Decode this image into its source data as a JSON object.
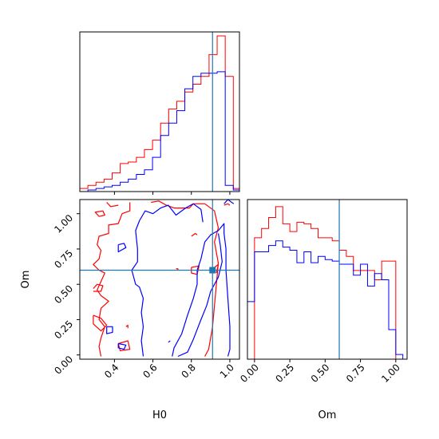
{
  "colors": {
    "series_a": "#ff0000",
    "series_b": "#0000ff",
    "truth": "#1f77b4",
    "axes": "#000000"
  },
  "chart_data": [
    {
      "type": "histogram",
      "panel": "H0 marginal (top-left)",
      "xlim": [
        0.22,
        1.05
      ],
      "tick_labels_shown": false,
      "truth": 0.91,
      "bin_edges": [
        0.22,
        0.262,
        0.304,
        0.346,
        0.388,
        0.43,
        0.472,
        0.514,
        0.556,
        0.598,
        0.64,
        0.682,
        0.724,
        0.766,
        0.808,
        0.85,
        0.892,
        0.934,
        0.976,
        1.018,
        1.05
      ],
      "series": [
        {
          "color": "red",
          "counts": [
            0.02,
            0.04,
            0.06,
            0.08,
            0.12,
            0.18,
            0.19,
            0.22,
            0.27,
            0.33,
            0.44,
            0.53,
            0.58,
            0.64,
            0.69,
            0.74,
            0.88,
            1.0,
            0.74,
            0.02
          ]
        },
        {
          "color": "blue",
          "counts": [
            0.0,
            0.01,
            0.02,
            0.03,
            0.04,
            0.06,
            0.08,
            0.11,
            0.14,
            0.22,
            0.36,
            0.44,
            0.52,
            0.66,
            0.74,
            0.76,
            0.76,
            0.77,
            0.04,
            0.01
          ]
        }
      ]
    },
    {
      "type": "contour",
      "panel": "H0 vs Om joint (bottom-left)",
      "xlabel": "H0",
      "ylabel": "Om",
      "xlim": [
        0.22,
        1.05
      ],
      "ylim": [
        -0.03,
        1.1
      ],
      "x_ticks": [
        0.4,
        0.6,
        0.8,
        1.0
      ],
      "x_tick_labels": [
        "0.4",
        "0.6",
        "0.8",
        "1.0"
      ],
      "y_ticks": [
        0.0,
        0.25,
        0.5,
        0.75,
        1.0
      ],
      "y_tick_labels": [
        "0.00",
        "0.25",
        "0.50",
        "0.75",
        "1.00"
      ],
      "truth": [
        0.91,
        0.6
      ],
      "series": [
        {
          "color": "red",
          "contours": [
            [
              [
                0.48,
                1.08
              ],
              [
                0.48,
                1.02
              ],
              [
                0.44,
                1.0
              ],
              [
                0.42,
                0.93
              ],
              [
                0.37,
                0.92
              ],
              [
                0.37,
                0.86
              ],
              [
                0.32,
                0.84
              ],
              [
                0.31,
                0.78
              ],
              [
                0.33,
                0.74
              ],
              [
                0.32,
                0.68
              ],
              [
                0.29,
                0.64
              ],
              [
                0.32,
                0.6
              ],
              [
                0.35,
                0.58
              ],
              [
                0.33,
                0.52
              ],
              [
                0.31,
                0.46
              ],
              [
                0.33,
                0.42
              ],
              [
                0.37,
                0.38
              ],
              [
                0.33,
                0.33
              ],
              [
                0.32,
                0.25
              ],
              [
                0.35,
                0.2
              ],
              [
                0.33,
                0.12
              ],
              [
                0.32,
                0.06
              ],
              [
                0.33,
                -0.01
              ]
            ],
            [
              [
                0.59,
                1.08
              ],
              [
                0.63,
                1.09
              ],
              [
                0.67,
                1.06
              ],
              [
                0.71,
                1.04
              ],
              [
                0.79,
                1.04
              ],
              [
                0.81,
                1.07
              ],
              [
                0.87,
                1.07
              ],
              [
                0.92,
                1.02
              ],
              [
                0.94,
                0.9
              ],
              [
                0.92,
                0.8
              ],
              [
                0.94,
                0.65
              ],
              [
                0.93,
                0.5
              ],
              [
                0.92,
                0.35
              ],
              [
                0.91,
                0.2
              ],
              [
                0.89,
                0.04
              ],
              [
                0.87,
                -0.01
              ]
            ],
            [
              [
                0.36,
                1.08
              ],
              [
                0.38,
                1.05
              ],
              [
                0.42,
                1.06
              ]
            ],
            [
              [
                0.32,
                0.98
              ],
              [
                0.35,
                0.99
              ],
              [
                0.34,
                1.02
              ],
              [
                0.3,
                1.01
              ],
              [
                0.32,
                0.98
              ]
            ],
            [
              [
                0.29,
                0.45
              ],
              [
                0.33,
                0.45
              ],
              [
                0.34,
                0.49
              ],
              [
                0.31,
                0.5
              ],
              [
                0.29,
                0.47
              ]
            ],
            [
              [
                0.29,
                0.28
              ],
              [
                0.33,
                0.26
              ],
              [
                0.36,
                0.21
              ],
              [
                0.33,
                0.17
              ],
              [
                0.29,
                0.22
              ],
              [
                0.29,
                0.28
              ]
            ],
            [
              [
                0.42,
                0.08
              ],
              [
                0.47,
                0.1
              ],
              [
                0.48,
                0.04
              ],
              [
                0.43,
                0.03
              ],
              [
                0.42,
                0.08
              ]
            ],
            [
              [
                0.46,
                0.2
              ],
              [
                0.47,
                0.21
              ],
              [
                0.47,
                0.19
              ]
            ],
            [
              [
                0.72,
                0.61
              ],
              [
                0.73,
                0.61
              ],
              [
                0.73,
                0.6
              ]
            ],
            [
              [
                0.8,
                0.84
              ],
              [
                0.82,
                0.86
              ],
              [
                0.83,
                0.85
              ]
            ],
            [
              [
                0.97,
                1.06
              ],
              [
                0.99,
                1.07
              ],
              [
                1.0,
                1.06
              ]
            ],
            [
              [
                0.8,
                0.62
              ],
              [
                0.84,
                0.63
              ],
              [
                0.83,
                0.57
              ],
              [
                0.8,
                0.58
              ],
              [
                0.8,
                0.62
              ]
            ],
            [
              [
                0.92,
                0.62
              ],
              [
                0.94,
                0.64
              ],
              [
                0.93,
                0.58
              ]
            ]
          ]
        },
        {
          "color": "blue",
          "contours": [
            [
              [
                0.55,
                -0.01
              ],
              [
                0.54,
                0.1
              ],
              [
                0.55,
                0.2
              ],
              [
                0.54,
                0.3
              ],
              [
                0.55,
                0.4
              ],
              [
                0.53,
                0.48
              ],
              [
                0.51,
                0.5
              ],
              [
                0.49,
                0.6
              ],
              [
                0.52,
                0.66
              ],
              [
                0.52,
                0.75
              ],
              [
                0.51,
                0.88
              ],
              [
                0.53,
                0.95
              ],
              [
                0.56,
                1.02
              ],
              [
                0.6,
                1.0
              ],
              [
                0.64,
                1.04
              ],
              [
                0.68,
                1.06
              ],
              [
                0.72,
                0.99
              ],
              [
                0.77,
                1.04
              ],
              [
                0.81,
                1.07
              ],
              [
                0.85,
                1.03
              ],
              [
                0.86,
                0.94
              ]
            ],
            [
              [
                0.7,
                -0.01
              ],
              [
                0.71,
                0.05
              ],
              [
                0.75,
                0.15
              ],
              [
                0.78,
                0.28
              ],
              [
                0.81,
                0.4
              ],
              [
                0.83,
                0.5
              ],
              [
                0.83,
                0.6
              ],
              [
                0.85,
                0.68
              ],
              [
                0.87,
                0.8
              ],
              [
                0.9,
                0.85
              ],
              [
                0.94,
                0.88
              ],
              [
                0.97,
                0.93
              ],
              [
                0.97,
                0.86
              ],
              [
                0.98,
                0.75
              ],
              [
                0.98,
                0.6
              ],
              [
                0.99,
                0.4
              ],
              [
                1.0,
                0.2
              ],
              [
                1.0,
                0.04
              ],
              [
                0.99,
                -0.01
              ]
            ],
            [
              [
                0.73,
                -0.01
              ],
              [
                0.78,
                0.02
              ],
              [
                0.81,
                0.11
              ],
              [
                0.85,
                0.25
              ],
              [
                0.88,
                0.35
              ],
              [
                0.9,
                0.45
              ],
              [
                0.94,
                0.55
              ],
              [
                0.96,
                0.66
              ],
              [
                0.95,
                0.78
              ],
              [
                0.94,
                0.86
              ]
            ],
            [
              [
                0.42,
                0.78
              ],
              [
                0.45,
                0.79
              ],
              [
                0.46,
                0.76
              ],
              [
                0.42,
                0.73
              ],
              [
                0.42,
                0.78
              ]
            ],
            [
              [
                0.36,
                0.2
              ],
              [
                0.39,
                0.2
              ],
              [
                0.39,
                0.16
              ],
              [
                0.36,
                0.15
              ],
              [
                0.36,
                0.2
              ]
            ],
            [
              [
                0.42,
                0.08
              ],
              [
                0.46,
                0.07
              ],
              [
                0.45,
                0.04
              ],
              [
                0.42,
                0.05
              ],
              [
                0.42,
                0.08
              ]
            ],
            [
              [
                0.68,
                0.09
              ],
              [
                0.69,
                0.1
              ]
            ],
            [
              [
                0.97,
                1.07
              ],
              [
                0.99,
                1.1
              ],
              [
                1.02,
                1.07
              ]
            ]
          ]
        }
      ]
    },
    {
      "type": "histogram",
      "panel": "Om marginal (bottom-right)",
      "xlabel": "Om",
      "xlim": [
        -0.05,
        1.08
      ],
      "x_ticks": [
        0.0,
        0.25,
        0.5,
        0.75,
        1.0
      ],
      "x_tick_labels": [
        "0.00",
        "0.25",
        "0.50",
        "0.75",
        "1.00"
      ],
      "truth": 0.6,
      "bin_edges": [
        -0.05,
        0.0,
        0.05,
        0.1,
        0.15,
        0.2,
        0.25,
        0.3,
        0.35,
        0.4,
        0.45,
        0.5,
        0.55,
        0.6,
        0.65,
        0.7,
        0.75,
        0.8,
        0.85,
        0.9,
        0.95,
        1.0,
        1.05
      ],
      "series": [
        {
          "color": "red",
          "counts": [
            0.0,
            0.78,
            0.84,
            0.91,
            0.98,
            0.87,
            0.82,
            0.88,
            0.87,
            0.84,
            0.78,
            0.78,
            0.76,
            0.7,
            0.66,
            0.57,
            0.57,
            0.57,
            0.51,
            0.63,
            0.63,
            0.0
          ]
        },
        {
          "color": "blue",
          "counts": [
            0.37,
            0.69,
            0.69,
            0.73,
            0.76,
            0.72,
            0.7,
            0.62,
            0.69,
            0.62,
            0.66,
            0.64,
            0.63,
            0.61,
            0.61,
            0.54,
            0.61,
            0.47,
            0.55,
            0.51,
            0.19,
            0.03
          ]
        }
      ]
    }
  ]
}
